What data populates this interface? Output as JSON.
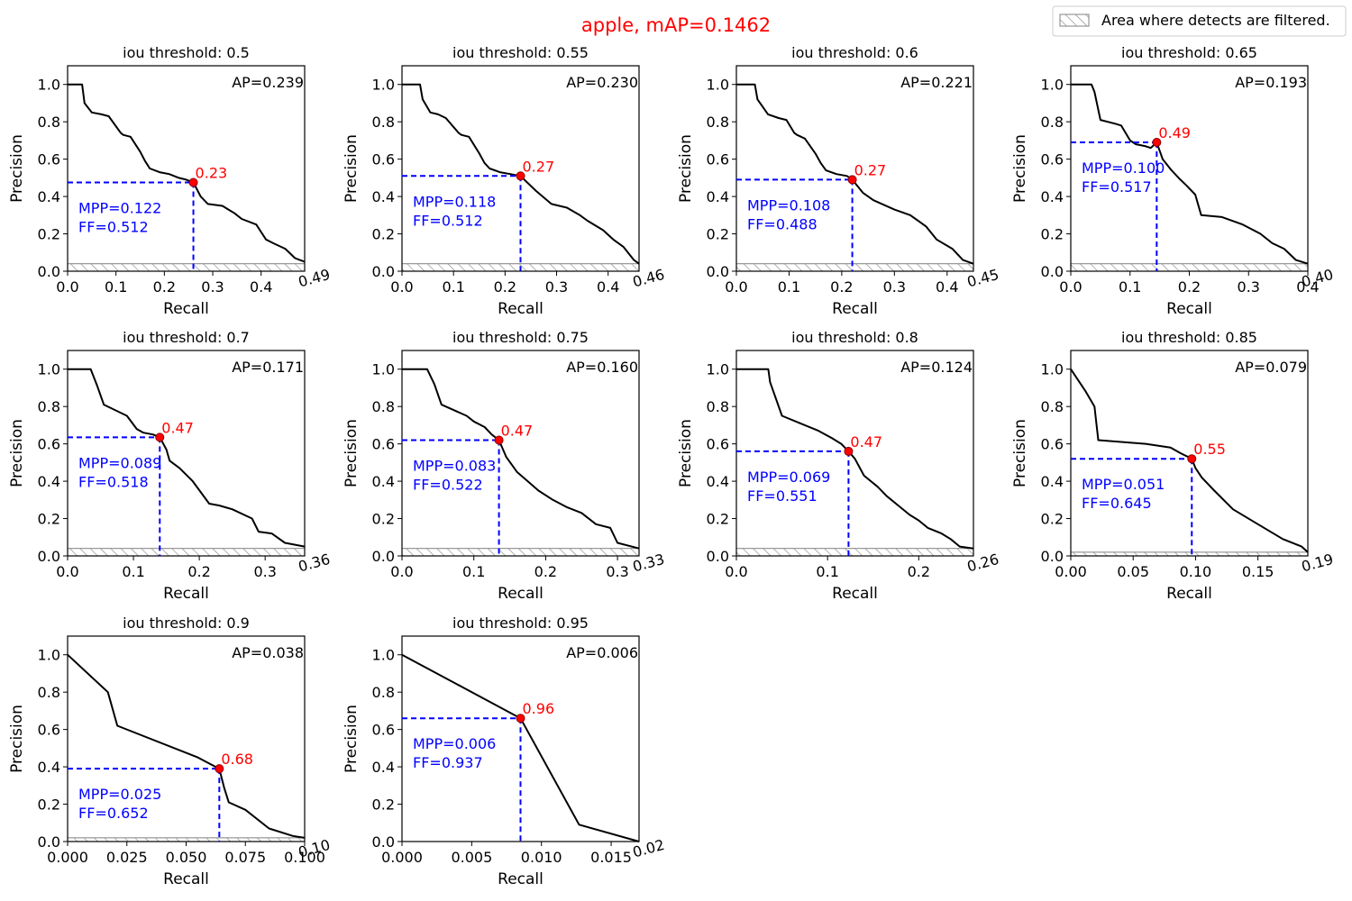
{
  "figure": {
    "title": "apple, mAP=0.1462",
    "title_color": "#ff0000",
    "legend": {
      "label": "Area where detects are filtered.",
      "placement": "top-right"
    }
  },
  "colors": {
    "curve": "#000000",
    "operating_point": "#ff0000",
    "mpp_guides": "#0000ff",
    "hatch": "#808080"
  },
  "chart_data": [
    {
      "type": "line",
      "title": "iou threshold: 0.5",
      "xlabel": "Recall",
      "ylabel": "Precision",
      "xlim": [
        0,
        0.49
      ],
      "ylim": [
        0,
        1.1
      ],
      "xticks": [
        0.0,
        0.1,
        0.2,
        0.3,
        0.4
      ],
      "xtick_labels": [
        "0.0",
        "0.1",
        "0.2",
        "0.3",
        "0.4"
      ],
      "yticks": [
        0.0,
        0.2,
        0.4,
        0.6,
        0.8,
        1.0
      ],
      "ytick_labels": [
        "0.0",
        "0.2",
        "0.4",
        "0.6",
        "0.8",
        "1.0"
      ],
      "max_recall_label": "0.49",
      "ap_label": "AP=0.239",
      "mpp_label": "MPP=0.122",
      "ff_label": "FF=0.512",
      "operating_point": {
        "x": 0.26,
        "y": 0.475,
        "label": "0.23"
      },
      "filtered_below": 0.04,
      "x": [
        0,
        0.03,
        0.035,
        0.05,
        0.07,
        0.085,
        0.11,
        0.115,
        0.13,
        0.15,
        0.16,
        0.17,
        0.19,
        0.21,
        0.23,
        0.245,
        0.26,
        0.275,
        0.29,
        0.32,
        0.345,
        0.36,
        0.39,
        0.41,
        0.425,
        0.45,
        0.47,
        0.49
      ],
      "y": [
        1.0,
        1.0,
        0.9,
        0.85,
        0.84,
        0.83,
        0.74,
        0.73,
        0.72,
        0.64,
        0.59,
        0.55,
        0.53,
        0.52,
        0.5,
        0.49,
        0.475,
        0.4,
        0.36,
        0.35,
        0.31,
        0.28,
        0.25,
        0.17,
        0.15,
        0.12,
        0.07,
        0.05
      ]
    },
    {
      "type": "line",
      "title": "iou threshold: 0.55",
      "xlabel": "Recall",
      "ylabel": "Precision",
      "xlim": [
        0,
        0.46
      ],
      "ylim": [
        0,
        1.1
      ],
      "xticks": [
        0.0,
        0.1,
        0.2,
        0.3,
        0.4
      ],
      "xtick_labels": [
        "0.0",
        "0.1",
        "0.2",
        "0.3",
        "0.4"
      ],
      "yticks": [
        0.0,
        0.2,
        0.4,
        0.6,
        0.8,
        1.0
      ],
      "ytick_labels": [
        "0.0",
        "0.2",
        "0.4",
        "0.6",
        "0.8",
        "1.0"
      ],
      "max_recall_label": "0.46",
      "ap_label": "AP=0.230",
      "mpp_label": "MPP=0.118",
      "ff_label": "FF=0.512",
      "operating_point": {
        "x": 0.23,
        "y": 0.51,
        "label": "0.27"
      },
      "filtered_below": 0.04,
      "x": [
        0,
        0.035,
        0.04,
        0.055,
        0.07,
        0.085,
        0.11,
        0.115,
        0.13,
        0.15,
        0.16,
        0.17,
        0.19,
        0.21,
        0.23,
        0.245,
        0.26,
        0.29,
        0.32,
        0.345,
        0.36,
        0.39,
        0.41,
        0.43,
        0.45,
        0.46
      ],
      "y": [
        1.0,
        1.0,
        0.92,
        0.85,
        0.84,
        0.82,
        0.74,
        0.73,
        0.72,
        0.63,
        0.58,
        0.55,
        0.53,
        0.52,
        0.51,
        0.47,
        0.43,
        0.36,
        0.34,
        0.3,
        0.27,
        0.22,
        0.17,
        0.13,
        0.06,
        0.04
      ]
    },
    {
      "type": "line",
      "title": "iou threshold: 0.6",
      "xlabel": "Recall",
      "ylabel": "Precision",
      "xlim": [
        0,
        0.45
      ],
      "ylim": [
        0,
        1.1
      ],
      "xticks": [
        0.0,
        0.1,
        0.2,
        0.3,
        0.4
      ],
      "xtick_labels": [
        "0.0",
        "0.1",
        "0.2",
        "0.3",
        "0.4"
      ],
      "yticks": [
        0.0,
        0.2,
        0.4,
        0.6,
        0.8,
        1.0
      ],
      "ytick_labels": [
        "0.0",
        "0.2",
        "0.4",
        "0.6",
        "0.8",
        "1.0"
      ],
      "max_recall_label": "0.45",
      "ap_label": "AP=0.221",
      "mpp_label": "MPP=0.108",
      "ff_label": "FF=0.488",
      "operating_point": {
        "x": 0.22,
        "y": 0.49,
        "label": "0.27"
      },
      "filtered_below": 0.04,
      "x": [
        0,
        0.035,
        0.04,
        0.06,
        0.08,
        0.095,
        0.11,
        0.115,
        0.13,
        0.15,
        0.16,
        0.17,
        0.19,
        0.21,
        0.22,
        0.24,
        0.26,
        0.3,
        0.33,
        0.36,
        0.38,
        0.41,
        0.43,
        0.45
      ],
      "y": [
        1.0,
        1.0,
        0.92,
        0.84,
        0.82,
        0.81,
        0.74,
        0.73,
        0.71,
        0.63,
        0.58,
        0.54,
        0.52,
        0.51,
        0.49,
        0.42,
        0.38,
        0.33,
        0.3,
        0.24,
        0.17,
        0.12,
        0.06,
        0.04
      ]
    },
    {
      "type": "line",
      "title": "iou threshold: 0.65",
      "xlabel": "Recall",
      "ylabel": "Precision",
      "xlim": [
        0,
        0.4
      ],
      "ylim": [
        0,
        1.1
      ],
      "xticks": [
        0.0,
        0.1,
        0.2,
        0.3,
        0.4
      ],
      "xtick_labels": [
        "0.0",
        "0.1",
        "0.2",
        "0.3",
        "0.4"
      ],
      "yticks": [
        0.0,
        0.2,
        0.4,
        0.6,
        0.8,
        1.0
      ],
      "ytick_labels": [
        "0.0",
        "0.2",
        "0.4",
        "0.6",
        "0.8",
        "1.0"
      ],
      "max_recall_label": "0.40",
      "ap_label": "AP=0.193",
      "mpp_label": "MPP=0.100",
      "ff_label": "FF=0.517",
      "operating_point": {
        "x": 0.145,
        "y": 0.69,
        "label": "0.49"
      },
      "filtered_below": 0.04,
      "x": [
        0,
        0.035,
        0.04,
        0.05,
        0.075,
        0.085,
        0.1,
        0.11,
        0.125,
        0.135,
        0.145,
        0.155,
        0.17,
        0.185,
        0.195,
        0.21,
        0.22,
        0.255,
        0.29,
        0.32,
        0.34,
        0.36,
        0.38,
        0.4
      ],
      "y": [
        1.0,
        1.0,
        0.96,
        0.81,
        0.79,
        0.78,
        0.7,
        0.68,
        0.67,
        0.66,
        0.69,
        0.6,
        0.54,
        0.49,
        0.46,
        0.41,
        0.3,
        0.29,
        0.25,
        0.2,
        0.15,
        0.12,
        0.06,
        0.04
      ]
    },
    {
      "type": "line",
      "title": "iou threshold: 0.7",
      "xlabel": "Recall",
      "ylabel": "Precision",
      "xlim": [
        0,
        0.36
      ],
      "ylim": [
        0,
        1.1
      ],
      "xticks": [
        0.0,
        0.1,
        0.2,
        0.3
      ],
      "xtick_labels": [
        "0.0",
        "0.1",
        "0.2",
        "0.3"
      ],
      "yticks": [
        0.0,
        0.2,
        0.4,
        0.6,
        0.8,
        1.0
      ],
      "ytick_labels": [
        "0.0",
        "0.2",
        "0.4",
        "0.6",
        "0.8",
        "1.0"
      ],
      "max_recall_label": "0.36",
      "ap_label": "AP=0.171",
      "mpp_label": "MPP=0.089",
      "ff_label": "FF=0.518",
      "operating_point": {
        "x": 0.14,
        "y": 0.635,
        "label": "0.47"
      },
      "filtered_below": 0.04,
      "x": [
        0,
        0.035,
        0.045,
        0.055,
        0.09,
        0.105,
        0.115,
        0.13,
        0.14,
        0.15,
        0.155,
        0.17,
        0.19,
        0.215,
        0.23,
        0.25,
        0.28,
        0.29,
        0.31,
        0.33,
        0.36
      ],
      "y": [
        1.0,
        1.0,
        0.91,
        0.81,
        0.75,
        0.68,
        0.66,
        0.65,
        0.635,
        0.57,
        0.51,
        0.47,
        0.4,
        0.28,
        0.27,
        0.25,
        0.2,
        0.13,
        0.12,
        0.07,
        0.05
      ]
    },
    {
      "type": "line",
      "title": "iou threshold: 0.75",
      "xlabel": "Recall",
      "ylabel": "Precision",
      "xlim": [
        0,
        0.33
      ],
      "ylim": [
        0,
        1.1
      ],
      "xticks": [
        0.0,
        0.1,
        0.2,
        0.3
      ],
      "xtick_labels": [
        "0.0",
        "0.1",
        "0.2",
        "0.3"
      ],
      "yticks": [
        0.0,
        0.2,
        0.4,
        0.6,
        0.8,
        1.0
      ],
      "ytick_labels": [
        "0.0",
        "0.2",
        "0.4",
        "0.6",
        "0.8",
        "1.0"
      ],
      "max_recall_label": "0.33",
      "ap_label": "AP=0.160",
      "mpp_label": "MPP=0.083",
      "ff_label": "FF=0.522",
      "operating_point": {
        "x": 0.135,
        "y": 0.62,
        "label": "0.47"
      },
      "filtered_below": 0.04,
      "x": [
        0,
        0.035,
        0.045,
        0.055,
        0.09,
        0.1,
        0.115,
        0.125,
        0.135,
        0.145,
        0.16,
        0.175,
        0.19,
        0.21,
        0.23,
        0.25,
        0.27,
        0.29,
        0.3,
        0.33
      ],
      "y": [
        1.0,
        1.0,
        0.92,
        0.81,
        0.75,
        0.72,
        0.69,
        0.65,
        0.62,
        0.53,
        0.45,
        0.4,
        0.35,
        0.3,
        0.26,
        0.23,
        0.17,
        0.15,
        0.07,
        0.04
      ]
    },
    {
      "type": "line",
      "title": "iou threshold: 0.8",
      "xlabel": "Recall",
      "ylabel": "Precision",
      "xlim": [
        0,
        0.26
      ],
      "ylim": [
        0,
        1.1
      ],
      "xticks": [
        0.0,
        0.1,
        0.2
      ],
      "xtick_labels": [
        "0.0",
        "0.1",
        "0.2"
      ],
      "yticks": [
        0.0,
        0.2,
        0.4,
        0.6,
        0.8,
        1.0
      ],
      "ytick_labels": [
        "0.0",
        "0.2",
        "0.4",
        "0.6",
        "0.8",
        "1.0"
      ],
      "max_recall_label": "0.26",
      "ap_label": "AP=0.124",
      "mpp_label": "MPP=0.069",
      "ff_label": "FF=0.551",
      "operating_point": {
        "x": 0.123,
        "y": 0.56,
        "label": "0.47"
      },
      "filtered_below": 0.04,
      "x": [
        0,
        0.035,
        0.037,
        0.05,
        0.07,
        0.09,
        0.105,
        0.115,
        0.123,
        0.13,
        0.14,
        0.155,
        0.165,
        0.18,
        0.19,
        0.2,
        0.21,
        0.225,
        0.235,
        0.245,
        0.26
      ],
      "y": [
        1.0,
        1.0,
        0.93,
        0.75,
        0.71,
        0.67,
        0.63,
        0.6,
        0.56,
        0.52,
        0.43,
        0.37,
        0.32,
        0.26,
        0.22,
        0.19,
        0.15,
        0.12,
        0.09,
        0.05,
        0.04
      ]
    },
    {
      "type": "line",
      "title": "iou threshold: 0.85",
      "xlabel": "Recall",
      "ylabel": "Precision",
      "xlim": [
        0,
        0.19
      ],
      "ylim": [
        0,
        1.1
      ],
      "xticks": [
        0.0,
        0.05,
        0.1,
        0.15
      ],
      "xtick_labels": [
        "0.00",
        "0.05",
        "0.10",
        "0.15"
      ],
      "yticks": [
        0.0,
        0.2,
        0.4,
        0.6,
        0.8,
        1.0
      ],
      "ytick_labels": [
        "0.0",
        "0.2",
        "0.4",
        "0.6",
        "0.8",
        "1.0"
      ],
      "max_recall_label": "0.19",
      "ap_label": "AP=0.079",
      "mpp_label": "MPP=0.051",
      "ff_label": "FF=0.645",
      "operating_point": {
        "x": 0.097,
        "y": 0.52,
        "label": "0.55"
      },
      "filtered_below": 0.02,
      "x": [
        0,
        0.012,
        0.019,
        0.022,
        0.06,
        0.08,
        0.088,
        0.097,
        0.1,
        0.105,
        0.115,
        0.13,
        0.15,
        0.17,
        0.185,
        0.19
      ],
      "y": [
        1.0,
        0.88,
        0.8,
        0.62,
        0.6,
        0.58,
        0.55,
        0.52,
        0.47,
        0.42,
        0.35,
        0.25,
        0.17,
        0.09,
        0.05,
        0.02
      ]
    },
    {
      "type": "line",
      "title": "iou threshold: 0.9",
      "xlabel": "Recall",
      "ylabel": "Precision",
      "xlim": [
        0,
        0.1
      ],
      "ylim": [
        0,
        1.1
      ],
      "xticks": [
        0.0,
        0.025,
        0.05,
        0.075,
        0.1
      ],
      "xtick_labels": [
        "0.000",
        "0.025",
        "0.050",
        "0.075",
        "0.100"
      ],
      "yticks": [
        0.0,
        0.2,
        0.4,
        0.6,
        0.8,
        1.0
      ],
      "ytick_labels": [
        "0.0",
        "0.2",
        "0.4",
        "0.6",
        "0.8",
        "1.0"
      ],
      "max_recall_label": "0.10",
      "ap_label": "AP=0.038",
      "mpp_label": "MPP=0.025",
      "ff_label": "FF=0.652",
      "operating_point": {
        "x": 0.064,
        "y": 0.39,
        "label": "0.68"
      },
      "filtered_below": 0.02,
      "x": [
        0,
        0.017,
        0.021,
        0.055,
        0.064,
        0.066,
        0.068,
        0.075,
        0.085,
        0.095,
        0.1
      ],
      "y": [
        1.0,
        0.8,
        0.62,
        0.45,
        0.39,
        0.29,
        0.21,
        0.17,
        0.07,
        0.03,
        0.02
      ]
    },
    {
      "type": "line",
      "title": "iou threshold: 0.95",
      "xlabel": "Recall",
      "ylabel": "Precision",
      "xlim": [
        0,
        0.017
      ],
      "ylim": [
        0,
        1.1
      ],
      "xticks": [
        0.0,
        0.005,
        0.01,
        0.015
      ],
      "xtick_labels": [
        "0.000",
        "0.005",
        "0.010",
        "0.015"
      ],
      "yticks": [
        0.0,
        0.2,
        0.4,
        0.6,
        0.8,
        1.0
      ],
      "ytick_labels": [
        "0.0",
        "0.2",
        "0.4",
        "0.6",
        "0.8",
        "1.0"
      ],
      "max_recall_label": "0.02",
      "ap_label": "AP=0.006",
      "mpp_label": "MPP=0.006",
      "ff_label": "FF=0.937",
      "operating_point": {
        "x": 0.0085,
        "y": 0.66,
        "label": "0.96"
      },
      "filtered_below": 0.0,
      "x": [
        0,
        0.0085,
        0.0127,
        0.017
      ],
      "y": [
        1.0,
        0.66,
        0.09,
        0.0
      ]
    }
  ]
}
